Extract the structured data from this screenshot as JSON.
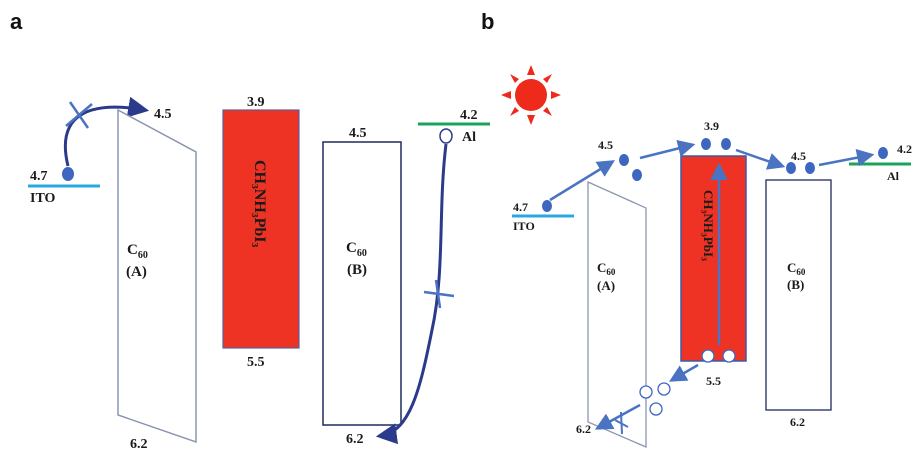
{
  "panels": {
    "a": {
      "label": "a",
      "ito": {
        "value": "4.7",
        "name": "ITO"
      },
      "c60_a": {
        "top": "4.5",
        "bottom": "6.2",
        "name": "C",
        "sub": "60",
        "tag": "(A)"
      },
      "perovskite": {
        "top": "3.9",
        "bottom": "5.5",
        "formula": "CH₃NH₃PbI₃"
      },
      "c60_b": {
        "top": "4.5",
        "bottom": "6.2",
        "name": "C",
        "sub": "60",
        "tag": "(B)"
      },
      "al": {
        "value": "4.2",
        "name": "Al"
      }
    },
    "b": {
      "label": "b",
      "ito": {
        "value": "4.7",
        "name": "ITO"
      },
      "c60_a": {
        "top": "4.5",
        "bottom": "6.2",
        "name": "C",
        "sub": "60",
        "tag": "(A)"
      },
      "perovskite": {
        "top": "3.9",
        "bottom": "5.5",
        "formula": "CH₃NH₃PbI₃"
      },
      "c60_b": {
        "top": "4.5",
        "bottom": "6.2",
        "name": "C",
        "sub": "60",
        "tag": "(B)"
      },
      "al": {
        "value": "4.2",
        "name": "Al"
      }
    }
  },
  "colors": {
    "perovskite_fill": "#ee3324",
    "ito_line": "#29a8e0",
    "al_line": "#1aa35a",
    "arrow_dark": "#2b3a8a",
    "arrow_light": "#4a73c2",
    "electron": "#3d66c0",
    "sun": "#ee2a1a",
    "box_stroke": "#1f2a5e",
    "box_a_stroke": "#8a96b0"
  },
  "icons": [
    "sun-icon",
    "electron-dot",
    "hole-circle",
    "blocked-cross"
  ]
}
